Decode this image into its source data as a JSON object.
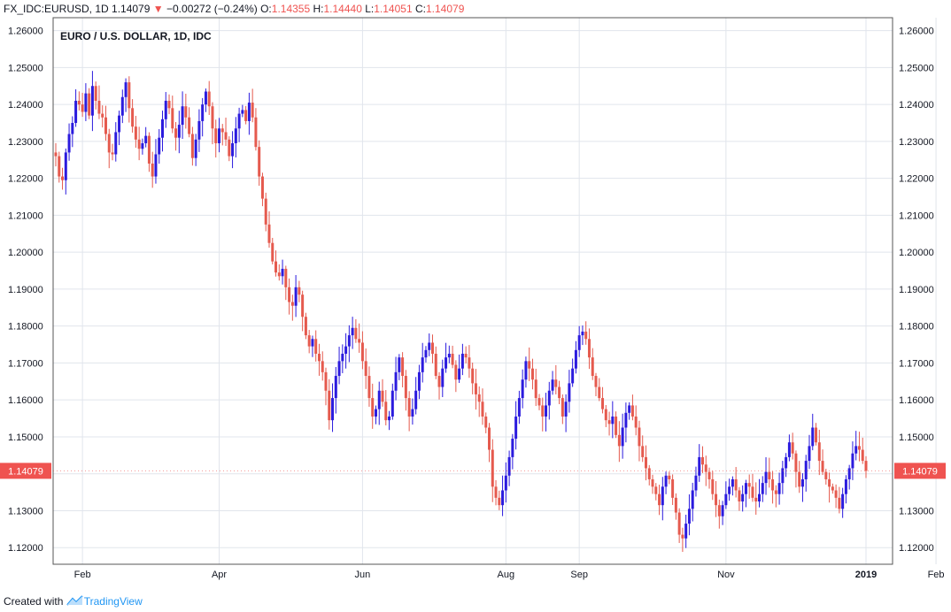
{
  "header": {
    "symbol": "FX_IDC:EURUSD, 1D",
    "last": "1.14079",
    "arrow": "▼",
    "change": "−0.00272 (−0.24%)",
    "o_label": "O:",
    "o_val": "1.14355",
    "h_label": "H:",
    "h_val": "1.14440",
    "l_label": "L:",
    "l_val": "1.14051",
    "c_label": "C:",
    "c_val": "1.14079"
  },
  "footer": {
    "created": "Created with",
    "brand": "TradingView"
  },
  "colors": {
    "up": "#2b1bde",
    "down": "#e55a4e",
    "badge": "#ef5350",
    "grid": "#e1e5ec",
    "border": "#555555"
  },
  "chart_data": {
    "type": "candlestick",
    "title": "EURO / U.S. DOLLAR, 1D, IDC",
    "last_price": 1.14079,
    "last_label": "1.14079",
    "ylim": [
      1.1155,
      1.2635
    ],
    "y_ticks": [
      "1.12000",
      "1.13000",
      "1.14000",
      "1.15000",
      "1.16000",
      "1.17000",
      "1.18000",
      "1.19000",
      "1.20000",
      "1.21000",
      "1.22000",
      "1.23000",
      "1.24000",
      "1.25000",
      "1.26000"
    ],
    "x_ticks": [
      {
        "label": "Feb",
        "i": 8
      },
      {
        "label": "Apr",
        "i": 49
      },
      {
        "label": "Jun",
        "i": 92
      },
      {
        "label": "Aug",
        "i": 135
      },
      {
        "label": "Sep",
        "i": 157
      },
      {
        "label": "Nov",
        "i": 201
      },
      {
        "label": "2019",
        "i": 243,
        "bold": true
      },
      {
        "label": "Feb",
        "i": 264
      }
    ],
    "close": [
      1.226,
      1.2205,
      1.2195,
      1.227,
      1.232,
      1.235,
      1.241,
      1.24,
      1.238,
      1.243,
      1.237,
      1.245,
      1.241,
      1.2375,
      1.2365,
      1.232,
      1.227,
      1.2265,
      1.2325,
      1.237,
      1.242,
      1.246,
      1.239,
      1.234,
      1.2305,
      1.228,
      1.2295,
      1.2315,
      1.224,
      1.2205,
      1.2265,
      1.231,
      1.236,
      1.241,
      1.239,
      1.2335,
      1.231,
      1.2345,
      1.2395,
      1.2365,
      1.232,
      1.2255,
      1.2305,
      1.2355,
      1.24,
      1.2435,
      1.2395,
      1.2335,
      1.2295,
      1.2335,
      1.2325,
      1.2305,
      1.226,
      1.2295,
      1.2335,
      1.2375,
      1.2385,
      1.2355,
      1.2405,
      1.2365,
      1.2285,
      1.2205,
      1.2145,
      1.2075,
      1.2025,
      1.1975,
      1.1945,
      1.1935,
      1.1955,
      1.1905,
      1.1865,
      1.1855,
      1.1905,
      1.1885,
      1.1825,
      1.1775,
      1.1745,
      1.1765,
      1.1725,
      1.1705,
      1.1675,
      1.1625,
      1.1545,
      1.1605,
      1.1665,
      1.1705,
      1.1725,
      1.1745,
      1.1775,
      1.1795,
      1.1765,
      1.1755,
      1.1705,
      1.1665,
      1.1605,
      1.1555,
      1.1575,
      1.1625,
      1.1595,
      1.1545,
      1.1555,
      1.1625,
      1.1675,
      1.1715,
      1.1665,
      1.1605,
      1.1555,
      1.1575,
      1.1625,
      1.1675,
      1.1715,
      1.1735,
      1.1755,
      1.1725,
      1.1665,
      1.1635,
      1.1685,
      1.1715,
      1.1725,
      1.1695,
      1.1655,
      1.1685,
      1.1725,
      1.1715,
      1.1685,
      1.1645,
      1.1615,
      1.1595,
      1.1555,
      1.1525,
      1.1465,
      1.1365,
      1.1335,
      1.1315,
      1.1355,
      1.1395,
      1.1445,
      1.1495,
      1.1555,
      1.1605,
      1.1655,
      1.1705,
      1.1685,
      1.1655,
      1.1605,
      1.1585,
      1.1555,
      1.1585,
      1.1625,
      1.1655,
      1.1635,
      1.1605,
      1.1555,
      1.1595,
      1.1645,
      1.1685,
      1.1735,
      1.1775,
      1.1785,
      1.1765,
      1.1715,
      1.1665,
      1.1635,
      1.1605,
      1.1575,
      1.1545,
      1.1535,
      1.1555,
      1.1505,
      1.1475,
      1.1525,
      1.1565,
      1.1585,
      1.1555,
      1.1525,
      1.1475,
      1.1445,
      1.1415,
      1.1385,
      1.1365,
      1.1345,
      1.1315,
      1.1365,
      1.1395,
      1.1385,
      1.1335,
      1.1295,
      1.1235,
      1.1225,
      1.1265,
      1.1305,
      1.1355,
      1.1395,
      1.1445,
      1.1425,
      1.1405,
      1.1385,
      1.1345,
      1.1315,
      1.1285,
      1.1315,
      1.1345,
      1.1365,
      1.1385,
      1.1355,
      1.1325,
      1.1345,
      1.1375,
      1.1365,
      1.1335,
      1.1325,
      1.1345,
      1.1375,
      1.1405,
      1.1385,
      1.1355,
      1.1345,
      1.1375,
      1.1415,
      1.1445,
      1.1485,
      1.1455,
      1.1405,
      1.1365,
      1.1385,
      1.1435,
      1.1475,
      1.1525,
      1.1485,
      1.1435,
      1.1405,
      1.1385,
      1.1365,
      1.1355,
      1.1335,
      1.1305,
      1.1345,
      1.1385,
      1.1415,
      1.1455,
      1.1475,
      1.1465,
      1.1435,
      1.14079
    ]
  }
}
